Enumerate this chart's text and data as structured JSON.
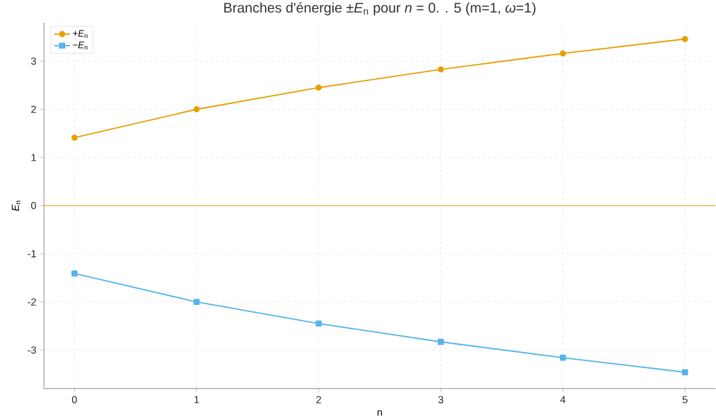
{
  "chart_data": {
    "type": "line",
    "title": "Branches d'énergie ±*E*$_{n}$ pour *n* = 0. . 5 (m=1, *ω*=1)",
    "xlabel": "n",
    "ylabel": "*E*$_{n}$",
    "x": [
      0,
      1,
      2,
      3,
      4,
      5
    ],
    "series": [
      {
        "name": "+*E*$_{n}$",
        "color": "#e69f00",
        "marker": "circle",
        "values": [
          1.41,
          2.0,
          2.45,
          2.83,
          3.16,
          3.46
        ]
      },
      {
        "name": "−*E*$_{n}$",
        "color": "#56b4e9",
        "marker": "square",
        "values": [
          -1.41,
          -2.0,
          -2.45,
          -2.83,
          -3.16,
          -3.46
        ]
      }
    ],
    "xlim": [
      -0.25,
      5.25
    ],
    "ylim": [
      -3.8,
      3.8
    ],
    "xticks": [
      0,
      1,
      2,
      3,
      4,
      5
    ],
    "yticks": [
      -3,
      -2,
      -1,
      0,
      1,
      2,
      3
    ],
    "ref_lines": [
      {
        "axis": "y",
        "value": 0,
        "color": "#e69f00"
      }
    ],
    "grid": true,
    "legend": "top left",
    "line_style": "solid"
  }
}
